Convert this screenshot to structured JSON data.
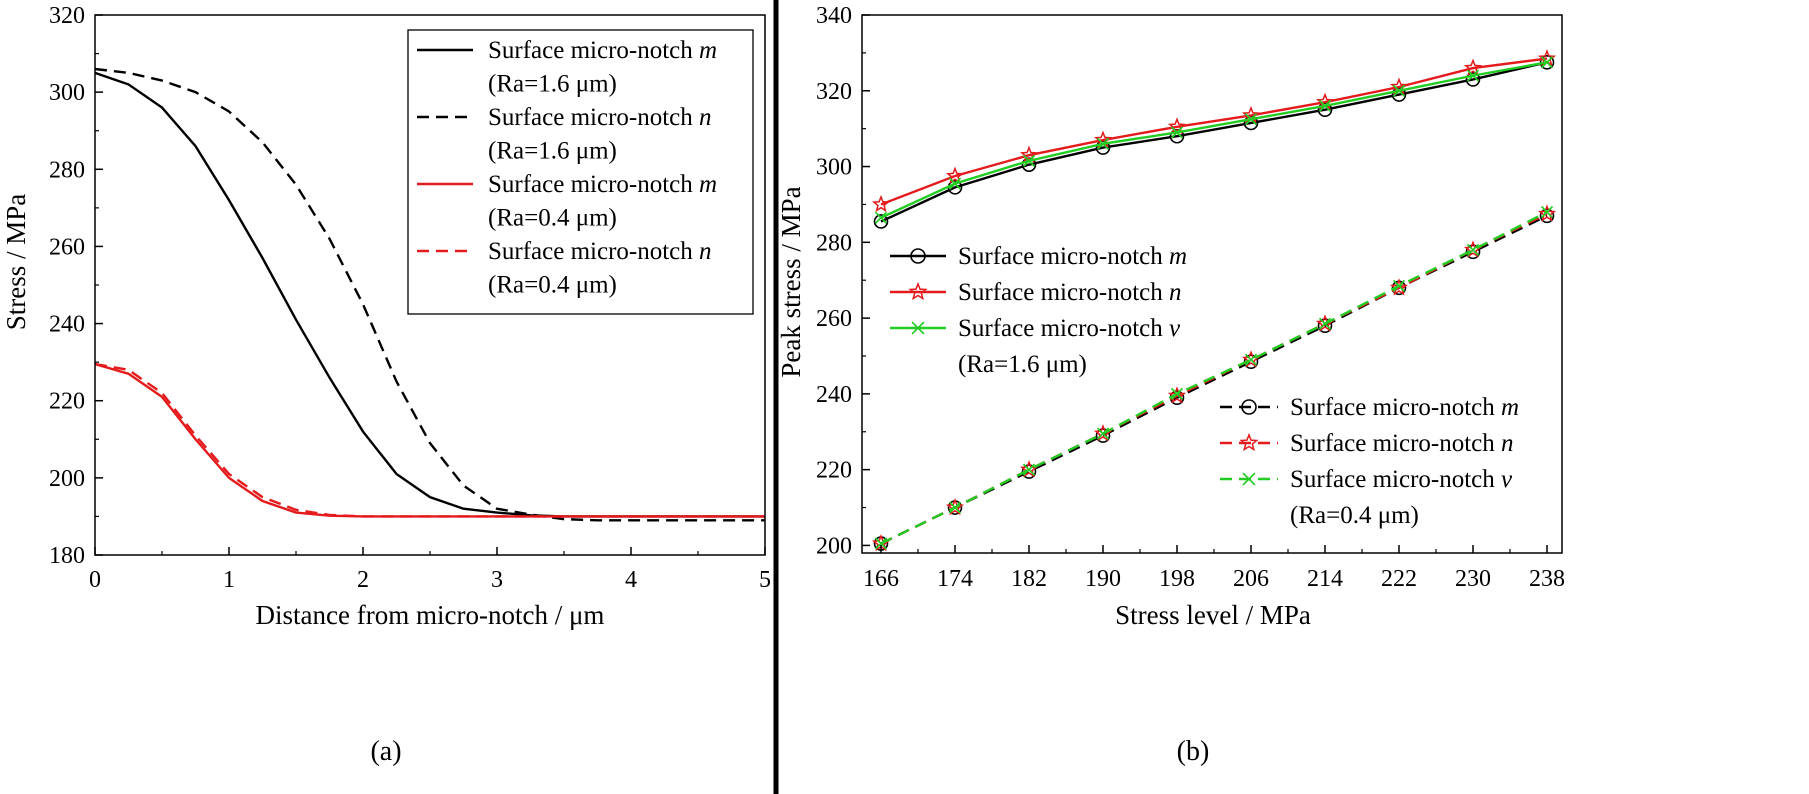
{
  "chart_data": [
    {
      "type": "line",
      "panel_label": "(a)",
      "xlabel": "Distance from micro-notch / μm",
      "ylabel": "Stress / MPa",
      "xlim": [
        0,
        5
      ],
      "ylim": [
        180,
        320
      ],
      "xticks": [
        "0",
        "1",
        "2",
        "3",
        "4",
        "5"
      ],
      "yticks": [
        "180",
        "200",
        "220",
        "240",
        "260",
        "280",
        "300",
        "320"
      ],
      "grid": false,
      "legend_position": "top-right",
      "legend": [
        {
          "prefix": "Surface micro-notch ",
          "var": "m"
        },
        {
          "text": "(Ra=1.6 μm)"
        },
        {
          "prefix": "Surface micro-notch ",
          "var": "n"
        },
        {
          "text": "(Ra=1.6 μm)"
        },
        {
          "prefix": "Surface micro-notch ",
          "var": "m"
        },
        {
          "text": "(Ra=0.4 μm)"
        },
        {
          "prefix": "Surface micro-notch ",
          "var": "n"
        },
        {
          "text": "(Ra=0.4 μm)"
        }
      ],
      "series": [
        {
          "name": "Surface micro-notch m (Ra=1.6 μm)",
          "color": "#000000",
          "dash": "solid",
          "x": [
            0,
            0.25,
            0.5,
            0.75,
            1.0,
            1.25,
            1.5,
            1.75,
            2.0,
            2.25,
            2.5,
            2.75,
            3.0,
            3.25,
            3.5,
            3.75,
            4,
            5
          ],
          "y": [
            305,
            302,
            296,
            286,
            272,
            257,
            241,
            226,
            212,
            201,
            195,
            192,
            191,
            190.3,
            190,
            190,
            190,
            190
          ]
        },
        {
          "name": "Surface micro-notch n (Ra=1.6 μm)",
          "color": "#000000",
          "dash": "dashed",
          "x": [
            0,
            0.25,
            0.5,
            0.75,
            1.0,
            1.25,
            1.5,
            1.75,
            2.0,
            2.25,
            2.5,
            2.75,
            3.0,
            3.25,
            3.5,
            3.75,
            4,
            5
          ],
          "y": [
            306,
            305,
            303,
            300,
            295,
            287,
            276,
            262,
            245,
            225,
            209,
            198,
            192,
            190.5,
            189.3,
            189,
            189,
            189
          ]
        },
        {
          "name": "Surface micro-notch m (Ra=0.4 μm)",
          "color": "#e41a1c",
          "dash": "solid",
          "x": [
            0,
            0.25,
            0.5,
            0.75,
            1.0,
            1.25,
            1.5,
            1.75,
            2.0,
            2.5,
            3,
            4,
            5
          ],
          "y": [
            229.5,
            227,
            221,
            210,
            200,
            194,
            191,
            190.2,
            190,
            190,
            190,
            190,
            190
          ]
        },
        {
          "name": "Surface micro-notch n (Ra=0.4 μm)",
          "color": "#e41a1c",
          "dash": "dashed",
          "x": [
            0,
            0.25,
            0.5,
            0.75,
            1.0,
            1.25,
            1.5,
            1.75,
            2.0,
            2.5,
            3,
            4,
            5
          ],
          "y": [
            229.5,
            228,
            222,
            211,
            201,
            195,
            191.7,
            190.4,
            190,
            190,
            190,
            190,
            190
          ]
        }
      ]
    },
    {
      "type": "line",
      "panel_label": "(b)",
      "xlabel": "Stress level / MPa",
      "ylabel": "Peak stress / MPa",
      "categories": [
        166,
        174,
        182,
        190,
        198,
        206,
        214,
        222,
        230,
        238
      ],
      "xticks": [
        "166",
        "174",
        "182",
        "190",
        "198",
        "206",
        "214",
        "222",
        "230",
        "238"
      ],
      "ylim": [
        198,
        340
      ],
      "yticks": [
        "200",
        "220",
        "240",
        "260",
        "280",
        "300",
        "320",
        "340"
      ],
      "grid": false,
      "legend_upper": [
        {
          "prefix": "Surface micro-notch ",
          "var": "m"
        },
        {
          "prefix": "Surface micro-notch ",
          "var": "n"
        },
        {
          "prefix": "Surface micro-notch ",
          "var": "v"
        },
        {
          "text": "(Ra=1.6 μm)"
        }
      ],
      "legend_lower": [
        {
          "prefix": "Surface micro-notch ",
          "var": "m"
        },
        {
          "prefix": "Surface micro-notch ",
          "var": "n"
        },
        {
          "prefix": "Surface micro-notch ",
          "var": "v"
        },
        {
          "text": "(Ra=0.4 μm)"
        }
      ],
      "series": [
        {
          "name": "Surface micro-notch m (Ra=1.6 μm)",
          "color": "#000000",
          "dash": "solid",
          "marker": "circle",
          "values": [
            285.5,
            294.5,
            300.5,
            305,
            308,
            311.5,
            315,
            319,
            323,
            327.5
          ]
        },
        {
          "name": "Surface micro-notch n (Ra=1.6 μm)",
          "color": "#e41a1c",
          "dash": "solid",
          "marker": "star",
          "values": [
            290,
            297.5,
            303,
            307,
            310.5,
            313.5,
            317,
            321,
            326,
            328.5
          ]
        },
        {
          "name": "Surface micro-notch v (Ra=1.6 μm)",
          "color": "#22cc22",
          "dash": "solid",
          "marker": "x",
          "values": [
            286.5,
            295.5,
            301.5,
            306,
            309,
            312.5,
            316,
            320,
            324,
            327.5
          ]
        },
        {
          "name": "Surface micro-notch m (Ra=0.4 μm)",
          "color": "#000000",
          "dash": "dashed",
          "marker": "circle",
          "values": [
            200.5,
            210,
            219.5,
            229,
            239,
            248.5,
            258,
            268,
            277.5,
            287
          ]
        },
        {
          "name": "Surface micro-notch n (Ra=0.4 μm)",
          "color": "#e41a1c",
          "dash": "dashed",
          "marker": "star",
          "values": [
            200.5,
            210,
            220,
            229.5,
            239.5,
            249,
            258.5,
            268,
            278,
            287.5
          ]
        },
        {
          "name": "Surface micro-notch v (Ra=0.4 μm)",
          "color": "#22cc22",
          "dash": "dashed",
          "marker": "x",
          "values": [
            200.5,
            210,
            220,
            229.5,
            240,
            249,
            258.5,
            268.5,
            278,
            288
          ]
        }
      ]
    }
  ]
}
